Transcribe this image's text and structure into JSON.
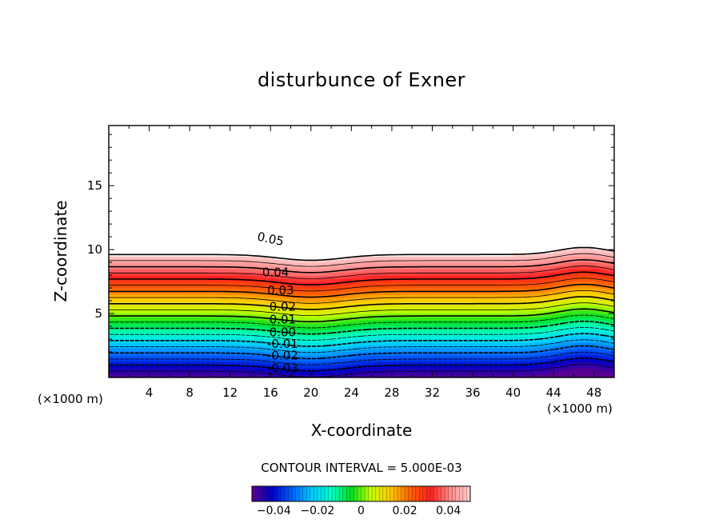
{
  "chart_data": {
    "type": "heatmap",
    "subtype": "filled-contour",
    "title": "disturbunce of Exner",
    "xlabel": "X-coordinate",
    "ylabel": "Z-coordinate",
    "x_unit_label": "(×1000 m)",
    "z_unit_label": "(×1000 m)",
    "xlim": [
      0,
      50
    ],
    "ylim": [
      0,
      19.7
    ],
    "x_ticks": [
      4,
      8,
      12,
      16,
      20,
      24,
      28,
      32,
      36,
      40,
      44,
      48
    ],
    "y_ticks": [
      5,
      10,
      15
    ],
    "contour_interval_text": "CONTOUR INTERVAL = 5.000E-03",
    "contour_interval": 0.005,
    "value_range": [
      -0.05,
      0.05
    ],
    "colorbar_ticks": [
      "−0.04",
      "−0.02",
      "0",
      "0.02",
      "0.04"
    ],
    "colorbar_values": [
      -0.04,
      -0.02,
      0,
      0.02,
      0.04
    ],
    "colormap": [
      "#5a0090",
      "#0000c8",
      "#0060ff",
      "#00c8ff",
      "#00ffc8",
      "#00e020",
      "#c8ff00",
      "#ffc800",
      "#ff6000",
      "#ff2020",
      "#ff8c8c",
      "#ffd0d0"
    ],
    "contour_labels": [
      {
        "text": "0.05",
        "x": 16,
        "z": 10.8
      },
      {
        "text": "0.04",
        "x": 16.5,
        "z": 8.2
      },
      {
        "text": "0.03",
        "x": 17,
        "z": 6.8
      },
      {
        "text": "0.02",
        "x": 17.2,
        "z": 5.5
      },
      {
        "text": "0.01",
        "x": 17.2,
        "z": 4.5
      },
      {
        "text": "0.00",
        "x": 17.2,
        "z": 3.5
      },
      {
        "text": "-0.01",
        "x": 17.2,
        "z": 2.6
      },
      {
        "text": "-0.02",
        "x": 17.2,
        "z": 1.7
      },
      {
        "text": "-0.03",
        "x": 17.2,
        "z": 0.7
      }
    ]
  }
}
